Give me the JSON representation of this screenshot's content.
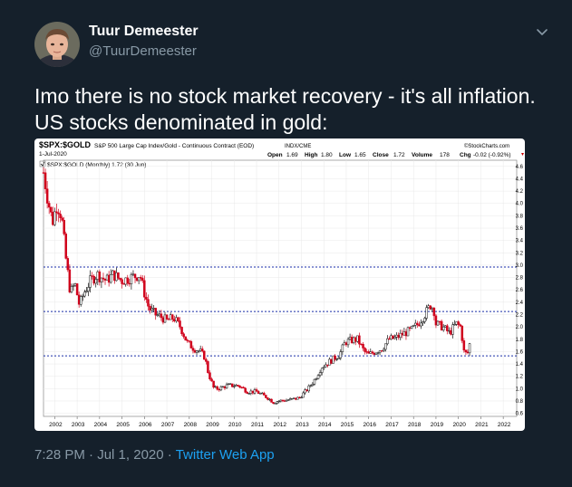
{
  "author": {
    "name": "Tuur Demeester",
    "handle": "@TuurDemeester"
  },
  "tweet": {
    "text": "Imo there is no stock market recovery - it's all inflation. US stocks denominated in gold:",
    "time": "7:28 PM",
    "date": "Jul 1, 2020",
    "source": "Twitter Web App",
    "separator": "·"
  },
  "icons": {
    "menu": "chevron-down-icon",
    "avatar": "profile-photo"
  },
  "chart_header": {
    "symbol": "$SPX:$GOLD",
    "description": "S&P 500 Large Cap Index/Gold - Continuous Contract (EOD)",
    "exchange": "INDX/CME",
    "brand": "©StockCharts.com",
    "date": "1-Jul-2020",
    "ohlc": {
      "open_label": "Open",
      "open": "1.69",
      "high_label": "High",
      "high": "1.80",
      "low_label": "Low",
      "low": "1.65",
      "close_label": "Close",
      "close": "1.72",
      "volume_label": "Volume",
      "volume": "178",
      "chg_label": "Chg",
      "chg": "-0.02 (-0.92%)"
    },
    "legend": "$SPX:$GOLD (Monthly) 1.72 (30 Jun)"
  },
  "colors": {
    "background": "#15202b",
    "text_primary": "#ffffff",
    "text_secondary": "#8899a6",
    "link": "#1da1f2",
    "candle_up": "#111111",
    "candle_down": "#d0021b",
    "guide_line": "#1a2ea8",
    "chg_negative": "#cc0000"
  },
  "chart_data": {
    "type": "candlestick",
    "title": "$SPX:$GOLD",
    "series_name": "$SPX:$GOLD (Monthly)",
    "x_ticks": [
      "2002",
      "2003",
      "2004",
      "2005",
      "2006",
      "2007",
      "2008",
      "2009",
      "2010",
      "2011",
      "2012",
      "2013",
      "2014",
      "2015",
      "2016",
      "2017",
      "2018",
      "2019",
      "2020",
      "2021",
      "2022"
    ],
    "y_ticks": [
      "0.6",
      "0.8",
      "1.0",
      "1.2",
      "1.4",
      "1.6",
      "1.8",
      "2.0",
      "2.2",
      "2.4",
      "2.6",
      "2.8",
      "3.0",
      "3.2",
      "3.4",
      "3.6",
      "3.8",
      "4.0",
      "4.2",
      "4.4",
      "4.6"
    ],
    "ylim": [
      0.55,
      4.7
    ],
    "xlim": [
      2001.5,
      2022.6
    ],
    "horizontal_lines": [
      2.97,
      2.25,
      1.53
    ],
    "grid": true,
    "anchors": [
      [
        2001.5,
        4.5
      ],
      [
        2001.7,
        4.05
      ],
      [
        2001.9,
        3.7
      ],
      [
        2002.1,
        4.0
      ],
      [
        2002.3,
        3.8
      ],
      [
        2002.5,
        3.1
      ],
      [
        2002.7,
        2.55
      ],
      [
        2002.9,
        2.7
      ],
      [
        2003.1,
        2.35
      ],
      [
        2003.3,
        2.55
      ],
      [
        2003.6,
        2.75
      ],
      [
        2003.9,
        2.85
      ],
      [
        2004.3,
        2.75
      ],
      [
        2004.6,
        2.85
      ],
      [
        2005.0,
        2.75
      ],
      [
        2005.4,
        2.8
      ],
      [
        2005.8,
        2.85
      ],
      [
        2006.0,
        2.55
      ],
      [
        2006.2,
        2.3
      ],
      [
        2006.5,
        2.2
      ],
      [
        2006.8,
        2.15
      ],
      [
        2007.0,
        2.1
      ],
      [
        2007.3,
        2.15
      ],
      [
        2007.6,
        2.0
      ],
      [
        2007.9,
        1.75
      ],
      [
        2008.2,
        1.65
      ],
      [
        2008.5,
        1.6
      ],
      [
        2008.7,
        1.5
      ],
      [
        2008.85,
        1.25
      ],
      [
        2009.1,
        1.0
      ],
      [
        2009.3,
        1.0
      ],
      [
        2009.7,
        1.05
      ],
      [
        2010.2,
        1.05
      ],
      [
        2010.6,
        0.95
      ],
      [
        2011.0,
        0.95
      ],
      [
        2011.5,
        0.85
      ],
      [
        2011.75,
        0.78
      ],
      [
        2012.0,
        0.8
      ],
      [
        2012.5,
        0.82
      ],
      [
        2012.9,
        0.85
      ],
      [
        2013.3,
        1.0
      ],
      [
        2013.6,
        1.15
      ],
      [
        2013.9,
        1.35
      ],
      [
        2014.3,
        1.45
      ],
      [
        2014.7,
        1.55
      ],
      [
        2014.95,
        1.75
      ],
      [
        2015.2,
        1.78
      ],
      [
        2015.5,
        1.8
      ],
      [
        2015.8,
        1.6
      ],
      [
        2016.0,
        1.55
      ],
      [
        2016.3,
        1.6
      ],
      [
        2016.6,
        1.65
      ],
      [
        2016.9,
        1.8
      ],
      [
        2017.2,
        1.82
      ],
      [
        2017.5,
        1.88
      ],
      [
        2017.9,
        1.95
      ],
      [
        2018.2,
        2.05
      ],
      [
        2018.5,
        2.2
      ],
      [
        2018.75,
        2.35
      ],
      [
        2018.9,
        2.3
      ],
      [
        2019.0,
        2.05
      ],
      [
        2019.3,
        2.0
      ],
      [
        2019.6,
        1.9
      ],
      [
        2019.9,
        2.05
      ],
      [
        2020.1,
        2.0
      ],
      [
        2020.25,
        1.6
      ],
      [
        2020.4,
        1.55
      ],
      [
        2020.5,
        1.72
      ]
    ]
  }
}
